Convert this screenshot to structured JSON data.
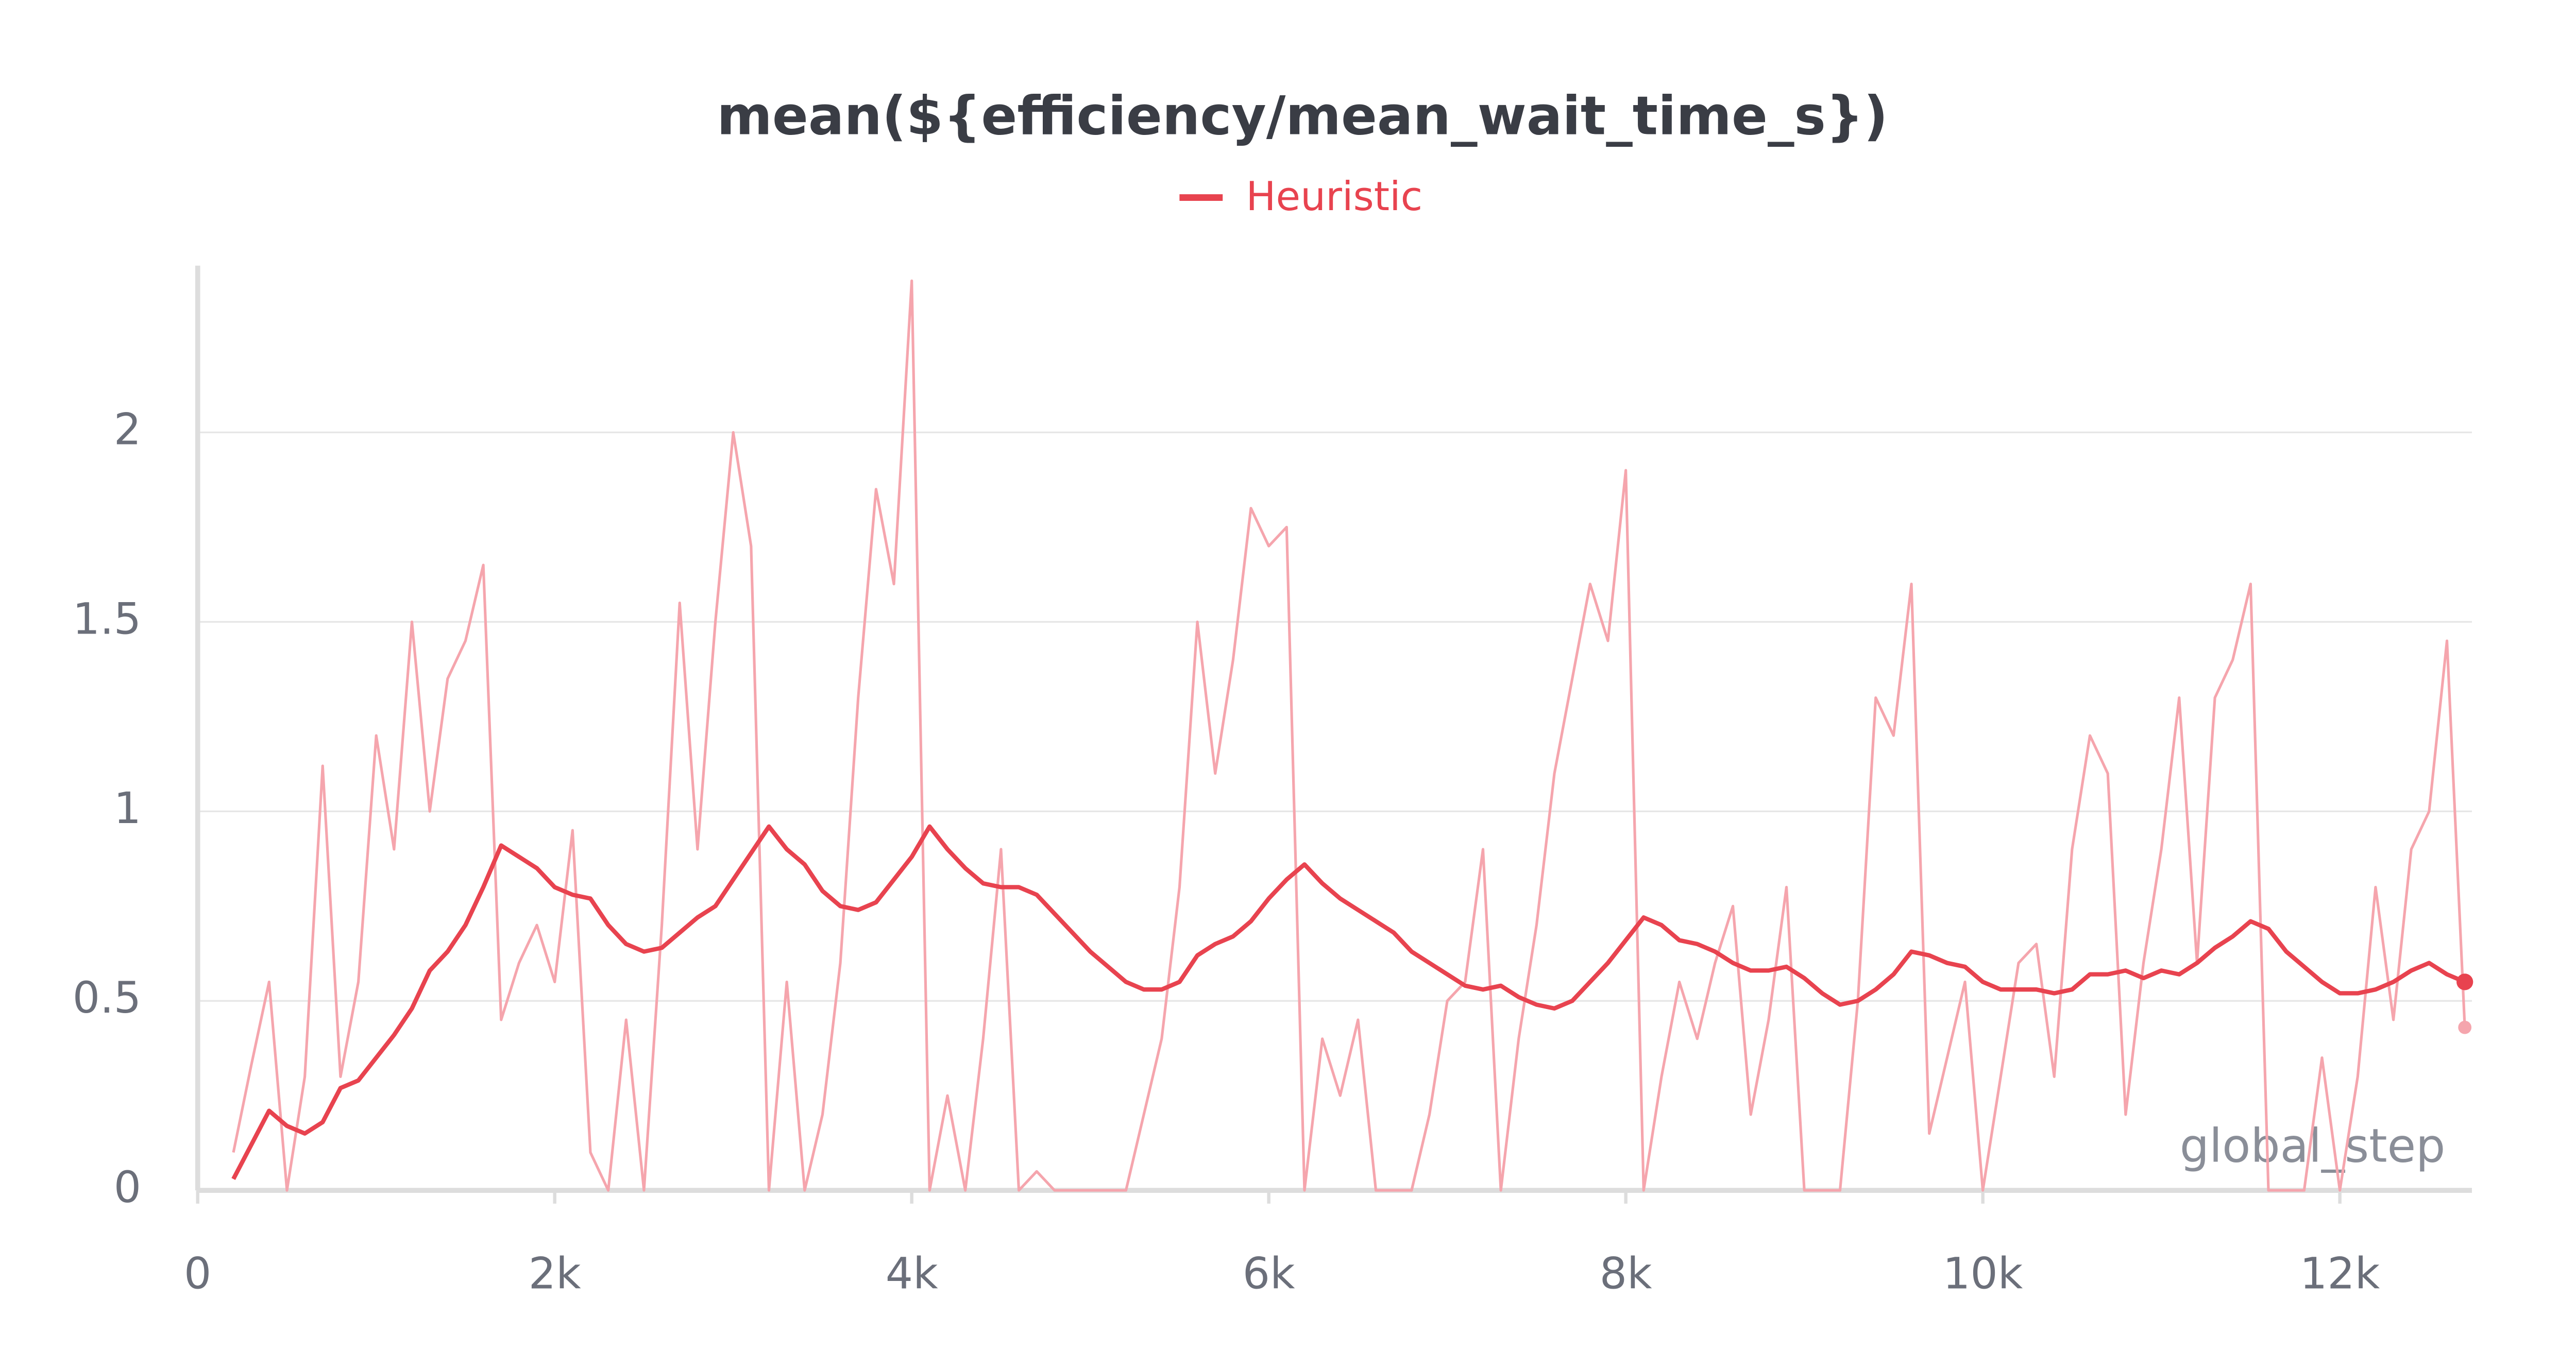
{
  "chart_data": {
    "type": "line",
    "title": "mean(${efficiency/mean_wait_time_s})",
    "xlabel": "global_step",
    "x": [
      200,
      300,
      400,
      500,
      600,
      700,
      800,
      900,
      1000,
      1100,
      1200,
      1300,
      1400,
      1500,
      1600,
      1700,
      1800,
      1900,
      2000,
      2100,
      2200,
      2300,
      2400,
      2500,
      2600,
      2700,
      2800,
      2900,
      3000,
      3100,
      3200,
      3300,
      3400,
      3500,
      3600,
      3700,
      3800,
      3900,
      4000,
      4100,
      4200,
      4300,
      4400,
      4500,
      4600,
      4700,
      4800,
      4900,
      5000,
      5100,
      5200,
      5300,
      5400,
      5500,
      5600,
      5700,
      5800,
      5900,
      6000,
      6100,
      6200,
      6300,
      6400,
      6500,
      6600,
      6700,
      6800,
      6900,
      7000,
      7100,
      7200,
      7300,
      7400,
      7500,
      7600,
      7700,
      7800,
      7900,
      8000,
      8100,
      8200,
      8300,
      8400,
      8500,
      8600,
      8700,
      8800,
      8900,
      9000,
      9100,
      9200,
      9300,
      9400,
      9500,
      9600,
      9700,
      9800,
      9900,
      10000,
      10100,
      10200,
      10300,
      10400,
      10500,
      10600,
      10700,
      10800,
      10900,
      11000,
      11100,
      11200,
      11300,
      11400,
      11500,
      11600,
      11700,
      11800,
      11900,
      12000,
      12100,
      12200,
      12300,
      12400,
      12500,
      12600,
      12700
    ],
    "series": [
      {
        "name": "Heuristic",
        "color": "#e8434f",
        "raw_color": "#f5a5ad",
        "values": [
          0.03,
          0.12,
          0.21,
          0.17,
          0.15,
          0.18,
          0.27,
          0.29,
          0.35,
          0.41,
          0.48,
          0.58,
          0.63,
          0.7,
          0.8,
          0.91,
          0.88,
          0.85,
          0.8,
          0.78,
          0.77,
          0.7,
          0.65,
          0.63,
          0.64,
          0.68,
          0.72,
          0.75,
          0.82,
          0.89,
          0.96,
          0.9,
          0.86,
          0.79,
          0.75,
          0.74,
          0.76,
          0.82,
          0.88,
          0.96,
          0.9,
          0.85,
          0.81,
          0.8,
          0.8,
          0.78,
          0.73,
          0.68,
          0.63,
          0.59,
          0.55,
          0.53,
          0.53,
          0.55,
          0.62,
          0.65,
          0.67,
          0.71,
          0.77,
          0.82,
          0.86,
          0.81,
          0.77,
          0.74,
          0.71,
          0.68,
          0.63,
          0.6,
          0.57,
          0.54,
          0.53,
          0.54,
          0.51,
          0.49,
          0.48,
          0.5,
          0.55,
          0.6,
          0.66,
          0.72,
          0.7,
          0.66,
          0.65,
          0.63,
          0.6,
          0.58,
          0.58,
          0.59,
          0.56,
          0.52,
          0.49,
          0.5,
          0.53,
          0.57,
          0.63,
          0.62,
          0.6,
          0.59,
          0.55,
          0.53,
          0.53,
          0.53,
          0.52,
          0.53,
          0.57,
          0.57,
          0.58,
          0.56,
          0.58,
          0.57,
          0.6,
          0.64,
          0.67,
          0.71,
          0.69,
          0.63,
          0.59,
          0.55,
          0.52,
          0.52,
          0.53,
          0.55,
          0.58,
          0.6,
          0.57,
          0.55
        ],
        "raw_values": [
          0.1,
          0.33,
          0.55,
          0,
          0.3,
          1.12,
          0.3,
          0.55,
          1.2,
          0.9,
          1.5,
          1,
          1.35,
          1.45,
          1.65,
          0.45,
          0.6,
          0.7,
          0.55,
          0.95,
          0.1,
          0,
          0.45,
          0,
          0.7,
          1.55,
          0.9,
          1.5,
          2,
          1.7,
          0,
          0.55,
          0,
          0.2,
          0.6,
          1.3,
          1.85,
          1.6,
          2.4,
          0,
          0.25,
          0,
          0.4,
          0.9,
          0,
          0.05,
          0,
          0,
          0,
          0,
          0,
          0.2,
          0.4,
          0.8,
          1.5,
          1.1,
          1.4,
          1.8,
          1.7,
          1.75,
          0,
          0.4,
          0.25,
          0.45,
          0,
          0,
          0,
          0.2,
          0.5,
          0.55,
          0.9,
          0,
          0.4,
          0.7,
          1.1,
          1.35,
          1.6,
          1.45,
          1.9,
          0,
          0.3,
          0.55,
          0.4,
          0.6,
          0.75,
          0.2,
          0.45,
          0.8,
          0,
          0,
          0,
          0.5,
          1.3,
          1.2,
          1.6,
          0.15,
          0.35,
          0.55,
          0,
          0.3,
          0.6,
          0.65,
          0.3,
          0.9,
          1.2,
          1.1,
          0.2,
          0.6,
          0.9,
          1.3,
          0.6,
          1.3,
          1.4,
          1.6,
          0,
          0,
          0,
          0.35,
          0,
          0.3,
          0.8,
          0.45,
          0.9,
          1,
          1.45,
          0.43
        ]
      }
    ],
    "xlim": [
      0,
      12740
    ],
    "ylim": [
      0,
      2.44
    ],
    "xticks": [
      0,
      {
        "value": 2000,
        "label": "2k"
      },
      {
        "value": 4000,
        "label": "4k"
      },
      {
        "value": 6000,
        "label": "6k"
      },
      {
        "value": 8000,
        "label": "8k"
      },
      {
        "value": 10000,
        "label": "10k"
      },
      {
        "value": 12000,
        "label": "12k"
      }
    ],
    "yticks": [
      0,
      0.5,
      1,
      1.5,
      2
    ],
    "grid": true
  }
}
